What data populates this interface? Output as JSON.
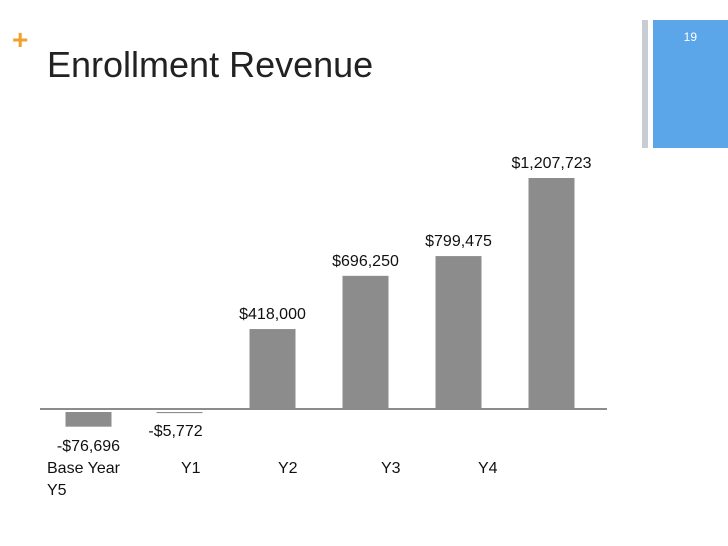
{
  "slide": {
    "plus_glyph": "+",
    "title": "Enrollment Revenue",
    "number": "19"
  },
  "colors": {
    "accent_plus": "#f0a22e",
    "sidebar_blue": "#5aa6e8",
    "sidebar_gray": "#c8cdd3",
    "bar": "#8c8c8c",
    "axis": "#8c8c8c"
  },
  "chart_data": {
    "type": "bar",
    "categories": [
      "Base Year",
      "Y1",
      "Y2",
      "Y3",
      "Y4",
      "Y5"
    ],
    "values": [
      -76696,
      -5772,
      418000,
      696250,
      799475,
      1207723
    ],
    "data_labels": [
      "-$76,696",
      "-$5,772",
      "$418,000",
      "$696,250",
      "$799,475",
      "$1,207,723"
    ],
    "title": "",
    "xlabel": "",
    "ylabel": "",
    "grid": false,
    "legend": "none"
  }
}
